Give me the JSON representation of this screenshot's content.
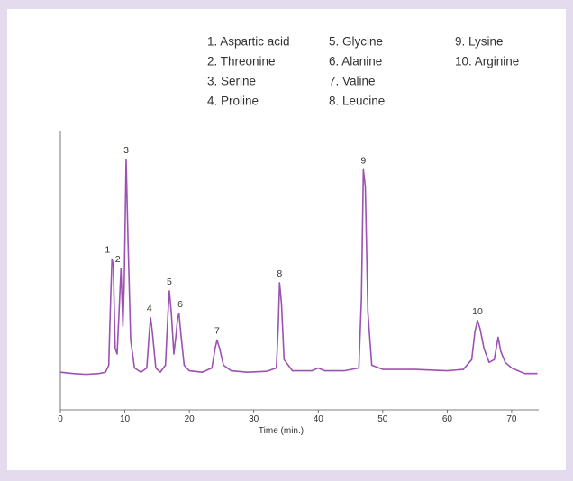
{
  "chart_data": {
    "type": "line",
    "xlabel": "Time (min.)",
    "legend_items": [
      "1. Aspartic acid",
      "2. Threonine",
      "3. Serine",
      "4. Proline",
      "5. Glycine",
      "6. Alanine",
      "7. Valine",
      "8. Leucine",
      "9. Lysine",
      "10. Arginine"
    ],
    "xlim": [
      0,
      74.2
    ],
    "xticks": [
      0,
      10,
      20,
      30,
      40,
      50,
      60,
      70
    ],
    "ylim": [
      0,
      100
    ],
    "series": [
      {
        "color": "#9b52b3",
        "x": [
          0,
          2,
          4,
          6,
          7,
          7.5,
          7.8,
          8.0,
          8.2,
          8.5,
          8.8,
          9.1,
          9.4,
          9.7,
          9.9,
          10.2,
          10.5,
          10.9,
          11.5,
          12.5,
          13.4,
          13.8,
          14.0,
          14.3,
          14.8,
          15.5,
          16.3,
          16.7,
          16.9,
          17.2,
          17.6,
          17.9,
          18.2,
          18.4,
          18.7,
          19.2,
          20,
          22,
          23.5,
          24.0,
          24.3,
          24.7,
          25.3,
          26.5,
          29,
          32,
          33.5,
          33.8,
          34.0,
          34.3,
          34.7,
          36,
          39,
          40,
          41,
          44,
          46.3,
          46.7,
          47.0,
          47.3,
          47.7,
          48.3,
          50,
          55,
          60,
          62.5,
          63.8,
          64.3,
          64.7,
          65.1,
          65.7,
          66.5,
          67.3,
          67.6,
          67.9,
          68.3,
          69,
          70,
          72,
          74
        ],
        "values": [
          13.5,
          13,
          12.7,
          13,
          13.5,
          16,
          40,
          54,
          52,
          22,
          20,
          35,
          50.6,
          30,
          45,
          89.7,
          60,
          25,
          15,
          13.5,
          15,
          28,
          33,
          27,
          15,
          13.5,
          16,
          35,
          42.6,
          35,
          20,
          26,
          33,
          34.5,
          27,
          16,
          14,
          13.5,
          15,
          22,
          25,
          22,
          16,
          14,
          13.5,
          13.8,
          15,
          30,
          45.5,
          38,
          18,
          14,
          14,
          15,
          14,
          14,
          15,
          40,
          86,
          80,
          35,
          16,
          14.5,
          14.5,
          14,
          14.5,
          18,
          28,
          32,
          29,
          22,
          17,
          18,
          22,
          26,
          21,
          17,
          15,
          13,
          13
        ]
      }
    ],
    "peak_labels": [
      {
        "text": "1",
        "x": 7.3,
        "y": 54
      },
      {
        "text": "2",
        "x": 8.9,
        "y": 50.6
      },
      {
        "text": "3",
        "x": 10.2,
        "y": 89.7
      },
      {
        "text": "4",
        "x": 13.8,
        "y": 33
      },
      {
        "text": "5",
        "x": 16.9,
        "y": 42.6
      },
      {
        "text": "6",
        "x": 18.6,
        "y": 34.5
      },
      {
        "text": "7",
        "x": 24.3,
        "y": 25
      },
      {
        "text": "8",
        "x": 34.0,
        "y": 45.5
      },
      {
        "text": "9",
        "x": 47.0,
        "y": 86
      },
      {
        "text": "10",
        "x": 64.7,
        "y": 32
      }
    ]
  }
}
